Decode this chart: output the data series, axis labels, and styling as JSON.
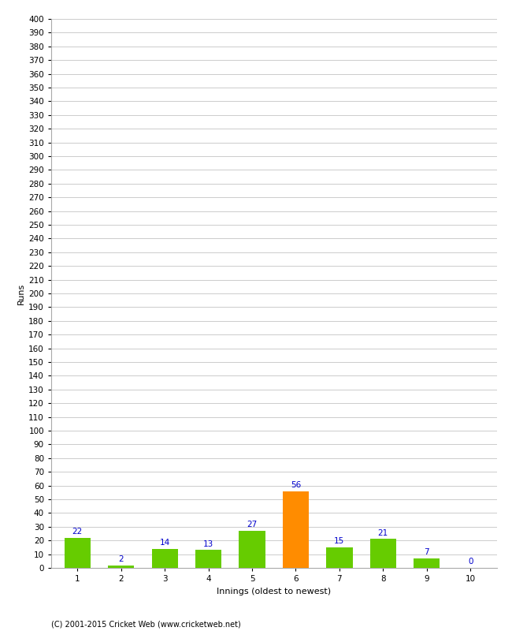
{
  "categories": [
    "1",
    "2",
    "3",
    "4",
    "5",
    "6",
    "7",
    "8",
    "9",
    "10"
  ],
  "values": [
    22,
    2,
    14,
    13,
    27,
    56,
    15,
    21,
    7,
    0
  ],
  "bar_colors": [
    "#66cc00",
    "#66cc00",
    "#66cc00",
    "#66cc00",
    "#66cc00",
    "#ff8c00",
    "#66cc00",
    "#66cc00",
    "#66cc00",
    "#66cc00"
  ],
  "value_color": "#0000cc",
  "ylabel": "Runs",
  "xlabel": "Innings (oldest to newest)",
  "ylim": [
    0,
    400
  ],
  "ytick_step": 10,
  "grid_color": "#cccccc",
  "background_color": "#ffffff",
  "footer": "(C) 2001-2015 Cricket Web (www.cricketweb.net)",
  "value_fontsize": 7.5,
  "axis_label_fontsize": 8,
  "tick_fontsize": 7.5,
  "bar_width": 0.6
}
